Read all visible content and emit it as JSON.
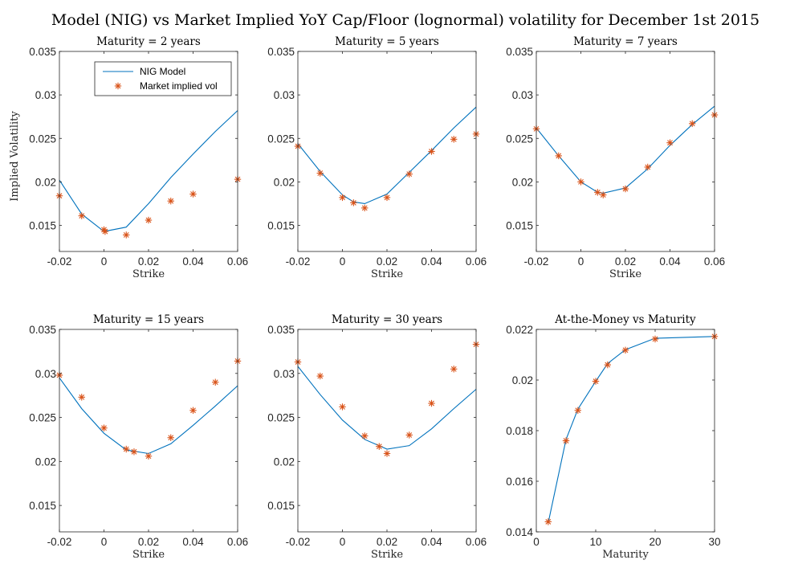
{
  "figure_title": "Model (NIG) vs Market Implied YoY Cap/Floor (lognormal) volatility for December 1st 2015",
  "colors": {
    "model": "#0072bd",
    "market": "#d95319",
    "axis": "#262626"
  },
  "chart_data": [
    {
      "type": "line",
      "title": "Maturity = 2 years",
      "xlabel": "Strike",
      "ylabel": "Implied Volatility",
      "xlim": [
        -0.02,
        0.06
      ],
      "ylim": [
        0.012,
        0.035
      ],
      "xticks": [
        -0.02,
        0,
        0.02,
        0.04,
        0.06
      ],
      "xtick_labels": [
        "-0.02",
        "0",
        "0.02",
        "0.04",
        "0.06"
      ],
      "yticks": [
        0.015,
        0.02,
        0.025,
        0.03,
        0.035
      ],
      "ytick_labels": [
        "0.015",
        "0.02",
        "0.025",
        "0.03",
        "0.035"
      ],
      "legend": {
        "location": "top-right",
        "entries": [
          "NIG Model",
          "Market implied vol"
        ]
      },
      "series": [
        {
          "name": "NIG Model",
          "style": "line",
          "x": [
            -0.02,
            -0.01,
            0,
            0.01,
            0.02,
            0.03,
            0.04,
            0.05,
            0.06
          ],
          "y": [
            0.0202,
            0.0163,
            0.0143,
            0.0148,
            0.0175,
            0.0205,
            0.0232,
            0.0258,
            0.0282
          ]
        },
        {
          "name": "Market implied vol",
          "style": "marker",
          "x": [
            -0.02,
            -0.01,
            0,
            0.0005,
            0.01,
            0.02,
            0.03,
            0.04,
            0.06
          ],
          "y": [
            0.0184,
            0.0161,
            0.0145,
            0.0143,
            0.0139,
            0.0156,
            0.0178,
            0.0186,
            0.0203
          ]
        }
      ]
    },
    {
      "type": "line",
      "title": "Maturity = 5 years",
      "xlabel": "Strike",
      "ylabel": "",
      "xlim": [
        -0.02,
        0.06
      ],
      "ylim": [
        0.012,
        0.035
      ],
      "xticks": [
        -0.02,
        0,
        0.02,
        0.04,
        0.06
      ],
      "xtick_labels": [
        "-0.02",
        "0",
        "0.02",
        "0.04",
        "0.06"
      ],
      "yticks": [
        0.015,
        0.02,
        0.025,
        0.03,
        0.035
      ],
      "ytick_labels": [
        "0.015",
        "0.02",
        "0.025",
        "0.03",
        "0.035"
      ],
      "series": [
        {
          "name": "NIG Model",
          "style": "line",
          "x": [
            -0.02,
            -0.01,
            0,
            0.005,
            0.01,
            0.02,
            0.03,
            0.04,
            0.05,
            0.06
          ],
          "y": [
            0.0244,
            0.0212,
            0.0185,
            0.0177,
            0.0175,
            0.0186,
            0.0211,
            0.0236,
            0.0262,
            0.0286
          ]
        },
        {
          "name": "Market implied vol",
          "style": "marker",
          "x": [
            -0.02,
            -0.01,
            0,
            0.005,
            0.01,
            0.02,
            0.03,
            0.04,
            0.05,
            0.06
          ],
          "y": [
            0.0241,
            0.021,
            0.0182,
            0.0176,
            0.017,
            0.0182,
            0.0209,
            0.0235,
            0.0249,
            0.0255
          ]
        }
      ]
    },
    {
      "type": "line",
      "title": "Maturity = 7 years",
      "xlabel": "Strike",
      "ylabel": "",
      "xlim": [
        -0.02,
        0.06
      ],
      "ylim": [
        0.012,
        0.035
      ],
      "xticks": [
        -0.02,
        0,
        0.02,
        0.04,
        0.06
      ],
      "xtick_labels": [
        "-0.02",
        "0",
        "0.02",
        "0.04",
        "0.06"
      ],
      "yticks": [
        0.015,
        0.02,
        0.025,
        0.03,
        0.035
      ],
      "ytick_labels": [
        "0.015",
        "0.02",
        "0.025",
        "0.03",
        "0.035"
      ],
      "series": [
        {
          "name": "NIG Model",
          "style": "line",
          "x": [
            -0.02,
            -0.01,
            0,
            0.0075,
            0.01,
            0.02,
            0.03,
            0.04,
            0.05,
            0.06
          ],
          "y": [
            0.0262,
            0.023,
            0.02,
            0.0188,
            0.0187,
            0.0193,
            0.0215,
            0.0242,
            0.0266,
            0.0287
          ]
        },
        {
          "name": "Market implied vol",
          "style": "marker",
          "x": [
            -0.02,
            -0.01,
            0,
            0.0075,
            0.01,
            0.02,
            0.03,
            0.04,
            0.05,
            0.06
          ],
          "y": [
            0.0261,
            0.023,
            0.02,
            0.0188,
            0.0185,
            0.0192,
            0.0217,
            0.0245,
            0.0267,
            0.0277
          ]
        }
      ]
    },
    {
      "type": "line",
      "title": "Maturity = 15 years",
      "xlabel": "Strike",
      "ylabel": "",
      "xlim": [
        -0.02,
        0.06
      ],
      "ylim": [
        0.012,
        0.035
      ],
      "xticks": [
        -0.02,
        0,
        0.02,
        0.04,
        0.06
      ],
      "xtick_labels": [
        "-0.02",
        "0",
        "0.02",
        "0.04",
        "0.06"
      ],
      "yticks": [
        0.015,
        0.02,
        0.025,
        0.03,
        0.035
      ],
      "ytick_labels": [
        "0.015",
        "0.02",
        "0.025",
        "0.03",
        "0.035"
      ],
      "series": [
        {
          "name": "NIG Model",
          "style": "line",
          "x": [
            -0.02,
            -0.01,
            0,
            0.01,
            0.02,
            0.03,
            0.04,
            0.05,
            0.06
          ],
          "y": [
            0.0295,
            0.026,
            0.0232,
            0.0213,
            0.0209,
            0.022,
            0.0241,
            0.0263,
            0.0286
          ]
        },
        {
          "name": "Market implied vol",
          "style": "marker",
          "x": [
            -0.02,
            -0.01,
            0,
            0.01,
            0.0135,
            0.02,
            0.03,
            0.04,
            0.05,
            0.06
          ],
          "y": [
            0.0298,
            0.0273,
            0.0238,
            0.0214,
            0.0211,
            0.0206,
            0.0227,
            0.0258,
            0.029,
            0.0314
          ]
        }
      ]
    },
    {
      "type": "line",
      "title": "Maturity = 30 years",
      "xlabel": "Strike",
      "ylabel": "",
      "xlim": [
        -0.02,
        0.06
      ],
      "ylim": [
        0.012,
        0.035
      ],
      "xticks": [
        -0.02,
        0,
        0.02,
        0.04,
        0.06
      ],
      "xtick_labels": [
        "-0.02",
        "0",
        "0.02",
        "0.04",
        "0.06"
      ],
      "yticks": [
        0.015,
        0.02,
        0.025,
        0.03,
        0.035
      ],
      "ytick_labels": [
        "0.015",
        "0.02",
        "0.025",
        "0.03",
        "0.035"
      ],
      "series": [
        {
          "name": "NIG Model",
          "style": "line",
          "x": [
            -0.02,
            -0.01,
            0,
            0.01,
            0.02,
            0.03,
            0.04,
            0.05,
            0.06
          ],
          "y": [
            0.0308,
            0.0276,
            0.0247,
            0.0225,
            0.0214,
            0.0218,
            0.0237,
            0.026,
            0.0282
          ]
        },
        {
          "name": "Market implied vol",
          "style": "marker",
          "x": [
            -0.02,
            -0.01,
            0,
            0.01,
            0.0165,
            0.02,
            0.03,
            0.04,
            0.05,
            0.06
          ],
          "y": [
            0.0313,
            0.0297,
            0.0262,
            0.0229,
            0.0217,
            0.0209,
            0.023,
            0.0266,
            0.0305,
            0.0333
          ]
        }
      ]
    },
    {
      "type": "line",
      "title": "At-the-Money vs Maturity",
      "xlabel": "Maturity",
      "ylabel": "",
      "xlim": [
        0,
        30
      ],
      "ylim": [
        0.014,
        0.022
      ],
      "xticks": [
        0,
        10,
        20,
        30
      ],
      "xtick_labels": [
        "0",
        "10",
        "20",
        "30"
      ],
      "yticks": [
        0.014,
        0.016,
        0.018,
        0.02,
        0.022
      ],
      "ytick_labels": [
        "0.014",
        "0.016",
        "0.018",
        "0.02",
        "0.022"
      ],
      "series": [
        {
          "name": "NIG Model",
          "style": "line",
          "x": [
            2,
            5,
            7,
            10,
            12,
            15,
            20,
            30
          ],
          "y": [
            0.01435,
            0.01765,
            0.01885,
            0.01995,
            0.02065,
            0.0212,
            0.02165,
            0.02172
          ]
        },
        {
          "name": "Market implied vol",
          "style": "marker",
          "x": [
            2,
            5,
            7,
            10,
            12,
            15,
            20,
            30
          ],
          "y": [
            0.0144,
            0.0176,
            0.0188,
            0.01995,
            0.0206,
            0.02118,
            0.02162,
            0.02172
          ]
        }
      ]
    }
  ]
}
